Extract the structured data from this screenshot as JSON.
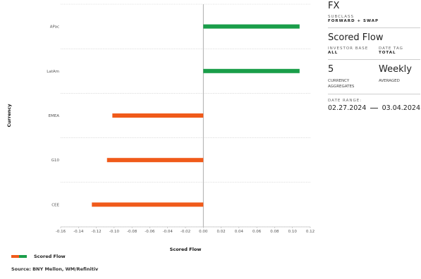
{
  "chart_data": {
    "type": "bar",
    "orientation": "horizontal",
    "categories": [
      "APac",
      "LatAm",
      "EMEA",
      "G10",
      "CEE"
    ],
    "series": [
      {
        "name": "Scored Flow",
        "values": [
          0.108,
          0.108,
          -0.102,
          -0.108,
          -0.125
        ]
      }
    ],
    "xlim": [
      -0.16,
      0.12
    ],
    "xticks": [
      "-0.16",
      "-0.14",
      "-0.12",
      "-0.10",
      "-0.08",
      "-0.06",
      "-0.04",
      "-0.02",
      "0.00",
      "0.02",
      "0.04",
      "0.06",
      "0.08",
      "0.10",
      "0.12"
    ],
    "xlabel": "Scored Flow",
    "ylabel": "Currency",
    "grid": "horizontal dotted",
    "legend_position": "bottom-left"
  },
  "colors": {
    "positive": "#1a9e4a",
    "negative": "#f05a1a"
  },
  "legend": {
    "label": "Scored Flow"
  },
  "source": "Source: BNY Mellon, WM/Refinitiv",
  "panel": {
    "title": "FX",
    "subclass_caption": "SUBCLASS",
    "subclass_value": "FORWARD + SWAP",
    "metric": "Scored Flow",
    "investor_base_caption": "INVESTOR BASE",
    "investor_base_value": "ALL",
    "date_tag_caption": "DATE TAG",
    "date_tag_value": "TOTAL",
    "count": "5",
    "count_caption_1": "CURRENCY",
    "count_caption_2": "AGGREGATES",
    "frequency": "Weekly",
    "frequency_caption": "AVERAGED",
    "date_range_caption": "DATE RANGE:",
    "date_start": "02.27.2024",
    "date_end": "03.04.2024"
  }
}
